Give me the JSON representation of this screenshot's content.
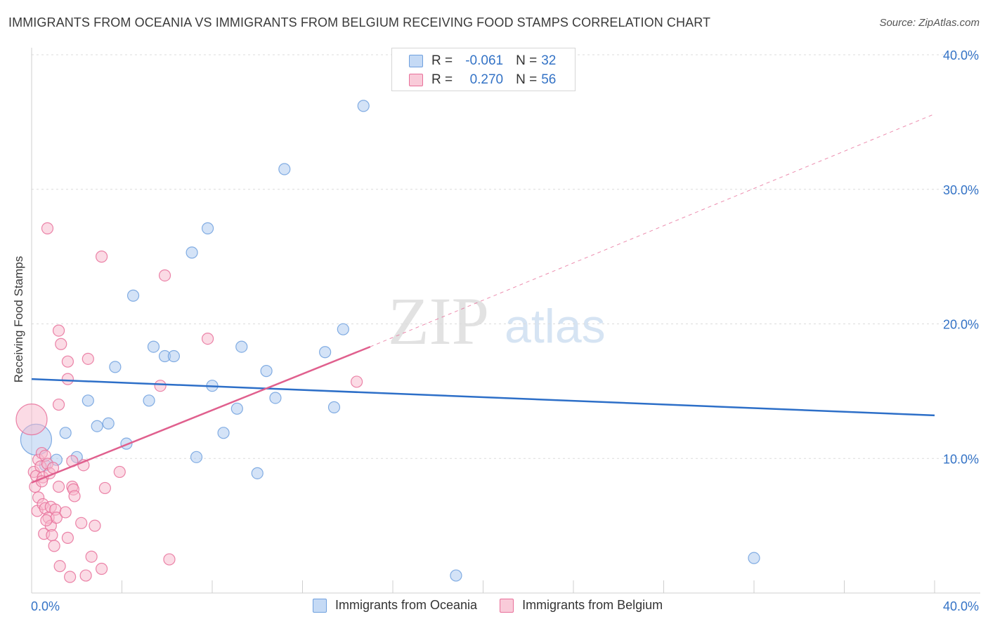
{
  "title": "IMMIGRANTS FROM OCEANIA VS IMMIGRANTS FROM BELGIUM RECEIVING FOOD STAMPS CORRELATION CHART",
  "source": "Source: ZipAtlas.com",
  "watermark": {
    "zip": "ZIP",
    "atlas": "atlas"
  },
  "legend": {
    "rows": [
      {
        "r_label": "R =",
        "r_value": "-0.061",
        "n_label": "N =",
        "n_value": "32",
        "color": "#a9c8f0"
      },
      {
        "r_label": "R =",
        "r_value": "0.270",
        "n_label": "N =",
        "n_value": "56",
        "color": "#f7b7cb"
      }
    ]
  },
  "chart_data": {
    "type": "scatter",
    "title": "IMMIGRANTS FROM OCEANIA VS IMMIGRANTS FROM BELGIUM RECEIVING FOOD STAMPS CORRELATION CHART",
    "xlabel": "",
    "ylabel": "Receiving Food Stamps",
    "xlim": [
      0,
      40
    ],
    "ylim": [
      0,
      40
    ],
    "x_tick_labels": [
      "0.0%",
      "40.0%"
    ],
    "y_ticks": [
      10,
      20,
      30,
      40
    ],
    "y_tick_labels": [
      "10.0%",
      "20.0%",
      "30.0%",
      "40.0%"
    ],
    "grid": true,
    "legend_position": "top-center",
    "series": [
      {
        "name": "Immigrants from Oceania",
        "color": "#6fa0de",
        "fill": "#a9c8f0",
        "r": -0.061,
        "n": 32,
        "trend": {
          "x": [
            0,
            40
          ],
          "y": [
            15.9,
            13.2
          ],
          "dashed_extension": false
        },
        "points": [
          {
            "x": 0.2,
            "y": 11.4,
            "big": true
          },
          {
            "x": 0.6,
            "y": 9.5
          },
          {
            "x": 1.1,
            "y": 9.9
          },
          {
            "x": 1.5,
            "y": 11.9
          },
          {
            "x": 2.0,
            "y": 10.1
          },
          {
            "x": 2.5,
            "y": 14.3
          },
          {
            "x": 2.9,
            "y": 12.4
          },
          {
            "x": 3.4,
            "y": 12.6
          },
          {
            "x": 3.7,
            "y": 16.8
          },
          {
            "x": 4.2,
            "y": 11.1
          },
          {
            "x": 4.5,
            "y": 22.1
          },
          {
            "x": 5.2,
            "y": 14.3
          },
          {
            "x": 5.4,
            "y": 18.3
          },
          {
            "x": 5.9,
            "y": 17.6
          },
          {
            "x": 6.3,
            "y": 17.6
          },
          {
            "x": 7.1,
            "y": 25.3
          },
          {
            "x": 7.3,
            "y": 10.1
          },
          {
            "x": 7.8,
            "y": 27.1
          },
          {
            "x": 8.0,
            "y": 15.4
          },
          {
            "x": 8.5,
            "y": 11.9
          },
          {
            "x": 9.1,
            "y": 13.7
          },
          {
            "x": 9.3,
            "y": 18.3
          },
          {
            "x": 10.0,
            "y": 8.9
          },
          {
            "x": 10.4,
            "y": 16.5
          },
          {
            "x": 10.8,
            "y": 14.5
          },
          {
            "x": 11.2,
            "y": 31.5
          },
          {
            "x": 13.0,
            "y": 17.9
          },
          {
            "x": 13.4,
            "y": 13.8
          },
          {
            "x": 13.8,
            "y": 19.6
          },
          {
            "x": 14.7,
            "y": 36.2
          },
          {
            "x": 18.8,
            "y": 1.3
          },
          {
            "x": 32.0,
            "y": 2.6
          }
        ]
      },
      {
        "name": "Immigrants from Belgium",
        "color": "#e8709a",
        "fill": "#f7b7cb",
        "r": 0.27,
        "n": 56,
        "trend": {
          "x": [
            0,
            15
          ],
          "y": [
            8.2,
            18.3
          ],
          "dashed_to": {
            "x": 40,
            "y": 35.6
          }
        },
        "points": [
          {
            "x": 0.0,
            "y": 12.9,
            "big": true
          },
          {
            "x": 0.1,
            "y": 9.0
          },
          {
            "x": 0.15,
            "y": 7.9
          },
          {
            "x": 0.2,
            "y": 8.7
          },
          {
            "x": 0.25,
            "y": 6.1
          },
          {
            "x": 0.3,
            "y": 9.9
          },
          {
            "x": 0.3,
            "y": 7.1
          },
          {
            "x": 0.4,
            "y": 9.4
          },
          {
            "x": 0.45,
            "y": 10.4
          },
          {
            "x": 0.5,
            "y": 8.6
          },
          {
            "x": 0.5,
            "y": 6.6
          },
          {
            "x": 0.55,
            "y": 4.4
          },
          {
            "x": 0.6,
            "y": 10.2
          },
          {
            "x": 0.6,
            "y": 6.3
          },
          {
            "x": 0.7,
            "y": 27.1
          },
          {
            "x": 0.7,
            "y": 9.6
          },
          {
            "x": 0.75,
            "y": 5.6
          },
          {
            "x": 0.8,
            "y": 8.9
          },
          {
            "x": 0.85,
            "y": 6.4
          },
          {
            "x": 0.85,
            "y": 5.0
          },
          {
            "x": 0.9,
            "y": 4.3
          },
          {
            "x": 1.0,
            "y": 3.5
          },
          {
            "x": 1.05,
            "y": 6.2
          },
          {
            "x": 1.1,
            "y": 5.6
          },
          {
            "x": 1.2,
            "y": 19.5
          },
          {
            "x": 1.2,
            "y": 14.0
          },
          {
            "x": 1.2,
            "y": 7.9
          },
          {
            "x": 1.25,
            "y": 2.0
          },
          {
            "x": 1.3,
            "y": 18.5
          },
          {
            "x": 1.5,
            "y": 6.0
          },
          {
            "x": 1.6,
            "y": 17.2
          },
          {
            "x": 1.6,
            "y": 15.9
          },
          {
            "x": 1.6,
            "y": 4.1
          },
          {
            "x": 1.7,
            "y": 1.2
          },
          {
            "x": 1.8,
            "y": 9.8
          },
          {
            "x": 1.8,
            "y": 7.9
          },
          {
            "x": 1.85,
            "y": 7.7
          },
          {
            "x": 1.9,
            "y": 7.2
          },
          {
            "x": 2.2,
            "y": 5.2
          },
          {
            "x": 2.3,
            "y": 9.5
          },
          {
            "x": 2.4,
            "y": 1.3
          },
          {
            "x": 2.5,
            "y": 17.4
          },
          {
            "x": 2.65,
            "y": 2.7
          },
          {
            "x": 2.8,
            "y": 5.0
          },
          {
            "x": 3.1,
            "y": 1.8
          },
          {
            "x": 3.1,
            "y": 25.0
          },
          {
            "x": 3.25,
            "y": 7.8
          },
          {
            "x": 3.9,
            "y": 9.0
          },
          {
            "x": 5.7,
            "y": 15.4
          },
          {
            "x": 5.9,
            "y": 23.6
          },
          {
            "x": 6.1,
            "y": 2.5
          },
          {
            "x": 7.8,
            "y": 18.9
          },
          {
            "x": 14.4,
            "y": 15.7
          },
          {
            "x": 0.95,
            "y": 9.3
          },
          {
            "x": 0.45,
            "y": 8.3
          },
          {
            "x": 0.65,
            "y": 5.4
          }
        ]
      }
    ]
  }
}
